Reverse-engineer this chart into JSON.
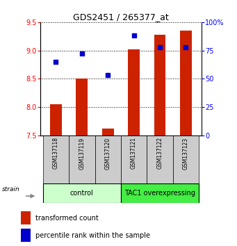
{
  "title": "GDS2451 / 265377_at",
  "samples": [
    "GSM137118",
    "GSM137119",
    "GSM137120",
    "GSM137121",
    "GSM137122",
    "GSM137123"
  ],
  "transformed_counts": [
    8.05,
    8.5,
    7.62,
    9.02,
    9.28,
    9.35
  ],
  "percentile_ranks": [
    65,
    72,
    53,
    88,
    78,
    78
  ],
  "ylim_left": [
    7.5,
    9.5
  ],
  "ylim_right": [
    0,
    100
  ],
  "yticks_left": [
    7.5,
    8.0,
    8.5,
    9.0,
    9.5
  ],
  "yticks_right": [
    0,
    25,
    50,
    75,
    100
  ],
  "ytick_labels_right": [
    "0",
    "25",
    "50",
    "75",
    "100%"
  ],
  "bar_color": "#cc2200",
  "dot_color": "#0000cc",
  "bar_width": 0.45,
  "group_labels": [
    "control",
    "TAC1 overexpressing"
  ],
  "group_colors": [
    "#ccffcc",
    "#44ee44"
  ],
  "strain_label": "strain",
  "legend_bar_label": "transformed count",
  "legend_dot_label": "percentile rank within the sample",
  "title_fontsize": 9,
  "tick_fontsize": 7,
  "sample_fontsize": 5.5,
  "group_fontsize": 7,
  "legend_fontsize": 7
}
